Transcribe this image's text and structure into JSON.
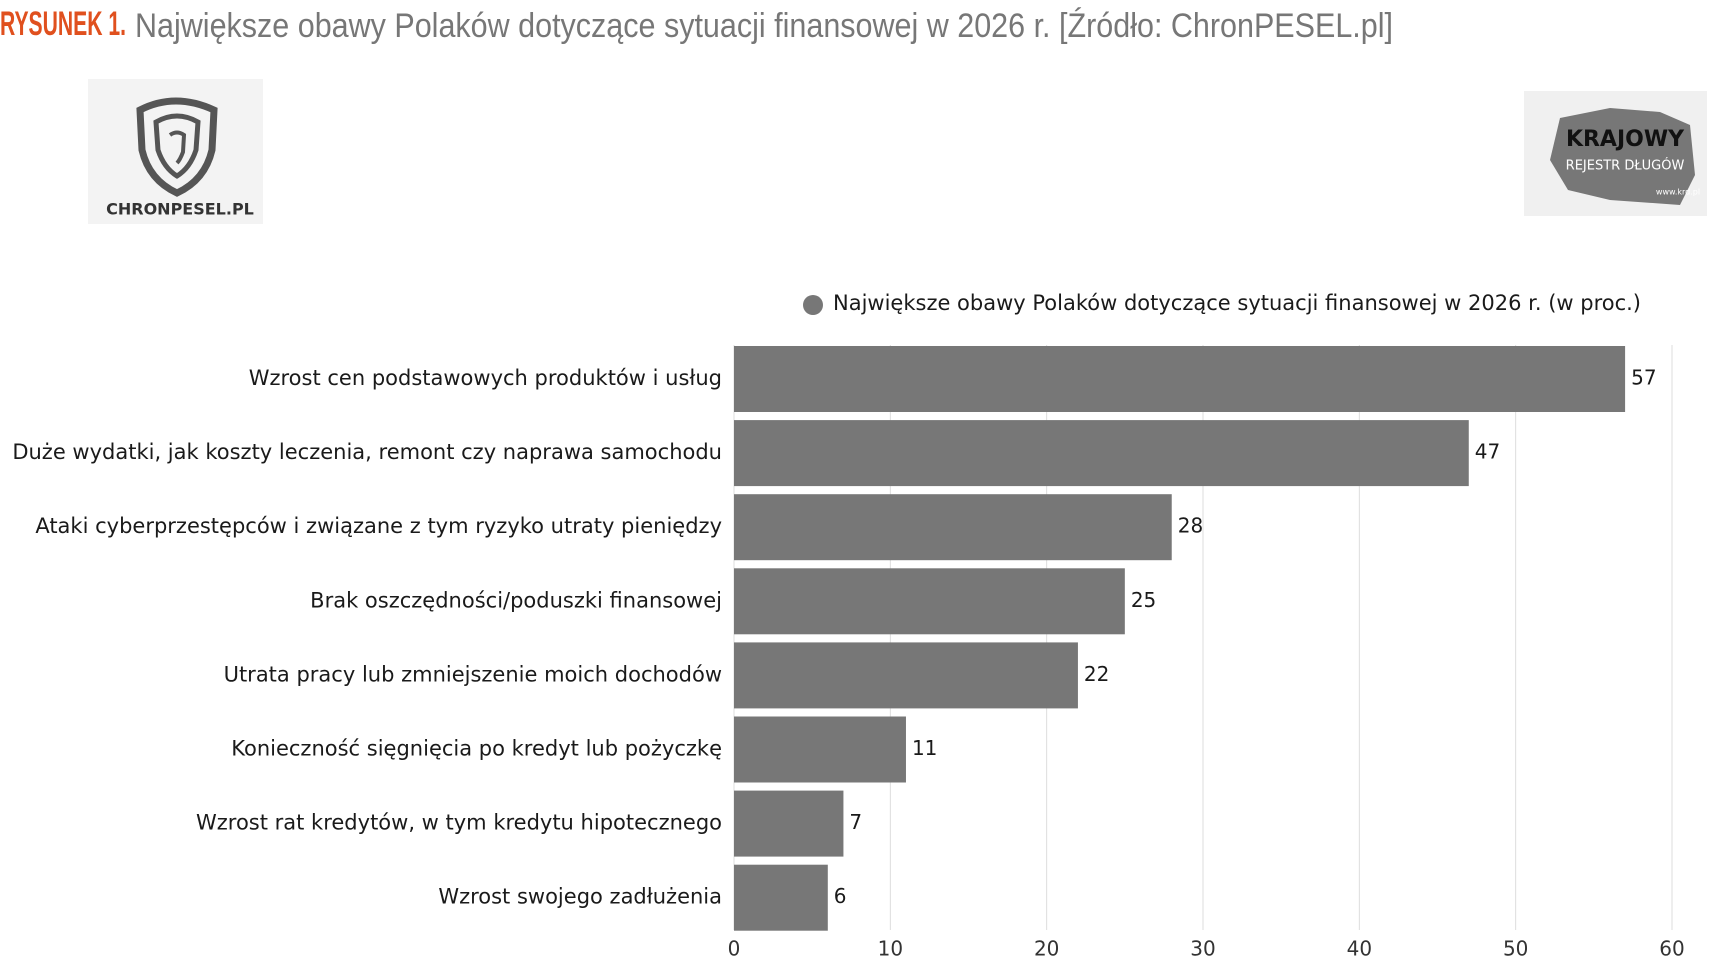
{
  "header": {
    "label": "RYSUNEK 1.",
    "title": "Największe obawy Polaków dotyczące sytuacji finansowej w 2026 r. [Źródło: ChronPESEL.pl]"
  },
  "logos": {
    "left": "CHRONPESEL.PL",
    "right": [
      "KRAJOWY",
      "REJESTR DŁUGÓW",
      "www.krd.pl"
    ]
  },
  "chart_data": {
    "type": "bar",
    "orientation": "horizontal",
    "categories": [
      "Wzrost cen podstawowych produktów i usług",
      "Duże wydatki, jak koszty leczenia, remont czy naprawa samochodu",
      "Ataki cyberprzestępców i związane z tym ryzyko utraty pieniędzy",
      "Brak oszczędności/poduszki finansowej",
      "Utrata pracy lub zmniejszenie moich dochodów",
      "Konieczność sięgnięcia po kredyt lub pożyczkę",
      "Wzrost rat kredytów, w tym kredytu hipotecznego",
      "Wzrost swojego zadłużenia"
    ],
    "series": [
      {
        "name": "Największe obawy Polaków dotyczące sytuacji finansowej w 2026 r. (w proc.)",
        "color": "#777777",
        "values": [
          57,
          47,
          28,
          25,
          22,
          11,
          7,
          6
        ]
      }
    ],
    "xlim": [
      0,
      60
    ],
    "xticks": [
      0,
      10,
      20,
      30,
      40,
      50,
      60
    ],
    "grid": true,
    "legend": "top"
  }
}
